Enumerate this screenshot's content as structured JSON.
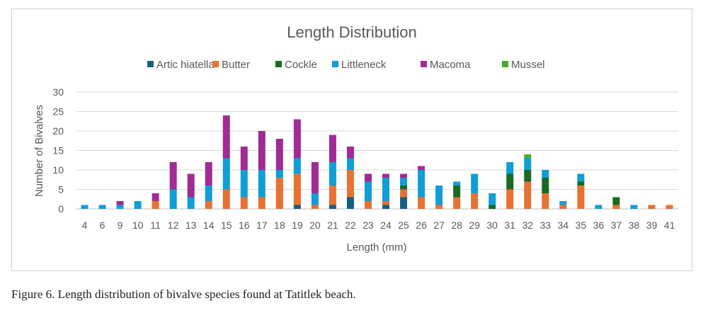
{
  "chart_data": {
    "type": "bar",
    "stacked": true,
    "title": "Length Distribution",
    "xlabel": "Length (mm)",
    "ylabel": "Number of Bivalves",
    "ylim": [
      0,
      30
    ],
    "yticks": [
      0,
      5,
      10,
      15,
      20,
      25,
      30
    ],
    "grid": true,
    "legend_position": "top",
    "categories": [
      "4",
      "6",
      "9",
      "10",
      "11",
      "12",
      "13",
      "14",
      "15",
      "16",
      "17",
      "18",
      "19",
      "20",
      "21",
      "22",
      "23",
      "24",
      "25",
      "26",
      "27",
      "28",
      "29",
      "30",
      "31",
      "32",
      "33",
      "34",
      "35",
      "36",
      "37",
      "38",
      "39",
      "41"
    ],
    "series": [
      {
        "name": "Artic  hiatella",
        "color": "#156082",
        "values": [
          0,
          0,
          0,
          0,
          0,
          0,
          0,
          0,
          0,
          0,
          0,
          0,
          1,
          0,
          1,
          3,
          0,
          1,
          3,
          0,
          0,
          0,
          0,
          0,
          0,
          0,
          0,
          0,
          0,
          0,
          0,
          0,
          0,
          0
        ]
      },
      {
        "name": "Butter",
        "color": "#E97132",
        "values": [
          0,
          0,
          0,
          0,
          2,
          0,
          0,
          2,
          5,
          3,
          3,
          8,
          8,
          1,
          5,
          7,
          2,
          1,
          2,
          3,
          1,
          3,
          4,
          0,
          5,
          7,
          4,
          1,
          6,
          0,
          1,
          0,
          1,
          1
        ]
      },
      {
        "name": "Cockle",
        "color": "#196B24",
        "values": [
          0,
          0,
          0,
          0,
          0,
          0,
          0,
          0,
          0,
          0,
          0,
          0,
          0,
          0,
          0,
          0,
          0,
          0,
          1,
          0,
          0,
          3,
          0,
          1,
          4,
          3,
          4,
          0,
          1,
          0,
          2,
          0,
          0,
          0
        ]
      },
      {
        "name": "Littleneck",
        "color": "#0F9ED5",
        "values": [
          1,
          1,
          1,
          2,
          0,
          5,
          3,
          4,
          8,
          7,
          7,
          2,
          4,
          3,
          6,
          3,
          5,
          6,
          2,
          7,
          5,
          1,
          5,
          3,
          3,
          3,
          2,
          1,
          2,
          1,
          0,
          1,
          0,
          0
        ]
      },
      {
        "name": "Macoma",
        "color": "#A02B93",
        "values": [
          0,
          0,
          1,
          0,
          2,
          7,
          6,
          6,
          11,
          6,
          10,
          8,
          10,
          8,
          7,
          3,
          2,
          1,
          1,
          1,
          0,
          0,
          0,
          0,
          0,
          0,
          0,
          0,
          0,
          0,
          0,
          0,
          0,
          0
        ]
      },
      {
        "name": "Mussel",
        "color": "#4EA72E",
        "values": [
          0,
          0,
          0,
          0,
          0,
          0,
          0,
          0,
          0,
          0,
          0,
          0,
          0,
          0,
          0,
          0,
          0,
          0,
          0,
          0,
          0,
          0,
          0,
          0,
          0,
          1,
          0,
          0,
          0,
          0,
          0,
          0,
          0,
          0
        ]
      }
    ]
  },
  "caption": "Figure 6. Length distribution of bivalve species found at Tatitlek beach."
}
